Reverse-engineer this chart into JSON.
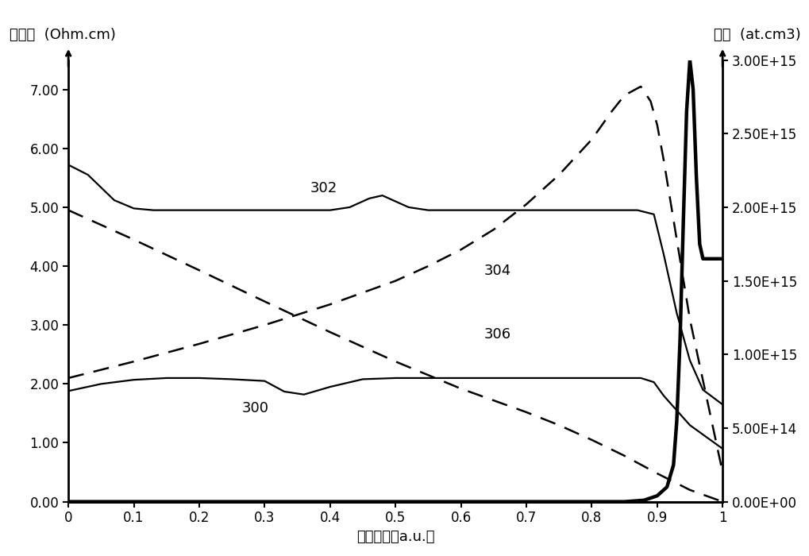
{
  "title": "",
  "xlabel": "固体分数（a.u.）",
  "ylabel_left_cn": "电阻率",
  "ylabel_left_en": "(Ohm.cm)",
  "ylabel_right_cn": "浓度",
  "ylabel_right_en": "(at.cm3)",
  "xlim": [
    0,
    1
  ],
  "ylim_left": [
    0.0,
    7.5
  ],
  "ylim_right": [
    0.0,
    3000000000000000.0
  ],
  "yticks_left": [
    0.0,
    1.0,
    2.0,
    3.0,
    4.0,
    5.0,
    6.0,
    7.0
  ],
  "ytick_labels_left": [
    "0.00",
    "1.00",
    "2.00",
    "3.00",
    "4.00",
    "5.00",
    "6.00",
    "7.00"
  ],
  "yticks_right": [
    0.0,
    500000000000000.0,
    1000000000000000.0,
    1500000000000000.0,
    2000000000000000.0,
    2500000000000000.0,
    3000000000000000.0
  ],
  "ytick_labels_right": [
    "0.00E+00",
    "5.00E+14",
    "1.00E+15",
    "1.50E+15",
    "2.00E+15",
    "2.50E+15",
    "3.00E+15"
  ],
  "xticks": [
    0,
    0.1,
    0.2,
    0.3,
    0.4,
    0.5,
    0.6,
    0.7,
    0.8,
    0.9,
    1
  ],
  "background_color": "#ffffff",
  "line_color": "#000000",
  "label_302": "302",
  "label_300": "300",
  "label_304": "304",
  "label_306": "306",
  "curve302_x": [
    0,
    0.03,
    0.07,
    0.1,
    0.13,
    0.2,
    0.3,
    0.35,
    0.4,
    0.43,
    0.46,
    0.48,
    0.5,
    0.52,
    0.55,
    0.6,
    0.65,
    0.7,
    0.75,
    0.8,
    0.85,
    0.87,
    0.895,
    0.91,
    0.93,
    0.95,
    0.97,
    1.0
  ],
  "curve302_y": [
    5.72,
    5.55,
    5.12,
    4.98,
    4.95,
    4.95,
    4.95,
    4.95,
    4.95,
    5.0,
    5.15,
    5.2,
    5.1,
    5.0,
    4.95,
    4.95,
    4.95,
    4.95,
    4.95,
    4.95,
    4.95,
    4.95,
    4.88,
    4.2,
    3.2,
    2.4,
    1.9,
    1.65
  ],
  "curve300_x": [
    0,
    0.05,
    0.1,
    0.15,
    0.2,
    0.25,
    0.3,
    0.33,
    0.36,
    0.4,
    0.45,
    0.5,
    0.6,
    0.7,
    0.75,
    0.8,
    0.85,
    0.875,
    0.895,
    0.91,
    0.93,
    0.95,
    1.0
  ],
  "curve300_y": [
    1.88,
    2.0,
    2.07,
    2.1,
    2.1,
    2.08,
    2.05,
    1.87,
    1.82,
    1.95,
    2.08,
    2.1,
    2.1,
    2.1,
    2.1,
    2.1,
    2.1,
    2.1,
    2.03,
    1.8,
    1.55,
    1.3,
    0.9
  ],
  "curve304_x": [
    0,
    0.1,
    0.2,
    0.3,
    0.4,
    0.5,
    0.6,
    0.65,
    0.7,
    0.75,
    0.8,
    0.85,
    0.9,
    0.95,
    1.0
  ],
  "curve304_y": [
    4.95,
    4.45,
    3.93,
    3.4,
    2.88,
    2.38,
    1.92,
    1.72,
    1.52,
    1.3,
    1.05,
    0.78,
    0.48,
    0.2,
    0.0
  ],
  "curve306_x": [
    0,
    0.1,
    0.2,
    0.3,
    0.4,
    0.5,
    0.55,
    0.6,
    0.65,
    0.7,
    0.75,
    0.8,
    0.83,
    0.85,
    0.875,
    0.89,
    0.9,
    0.91,
    0.93,
    0.95,
    1.0
  ],
  "curve306_y": [
    2.1,
    2.38,
    2.68,
    3.0,
    3.35,
    3.75,
    4.0,
    4.28,
    4.62,
    5.05,
    5.55,
    6.15,
    6.62,
    6.9,
    7.05,
    6.8,
    6.4,
    5.8,
    4.45,
    3.1,
    0.5
  ],
  "conc_x": [
    0,
    0.5,
    0.8,
    0.85,
    0.88,
    0.9,
    0.915,
    0.925,
    0.93,
    0.935,
    0.94,
    0.945,
    0.95,
    0.955,
    0.96,
    0.965,
    0.97,
    0.975,
    0.98,
    0.985,
    0.99,
    1.0
  ],
  "conc_y": [
    0,
    0,
    0,
    0,
    10000000000000.0,
    40000000000000.0,
    100000000000000.0,
    250000000000000.0,
    550000000000000.0,
    1100000000000000.0,
    1900000000000000.0,
    2650000000000000.0,
    3000000000000000.0,
    2800000000000000.0,
    2200000000000000.0,
    1750000000000000.0,
    1650000000000000.0,
    1650000000000000.0,
    1650000000000000.0,
    1650000000000000.0,
    1650000000000000.0,
    1650000000000000.0
  ]
}
